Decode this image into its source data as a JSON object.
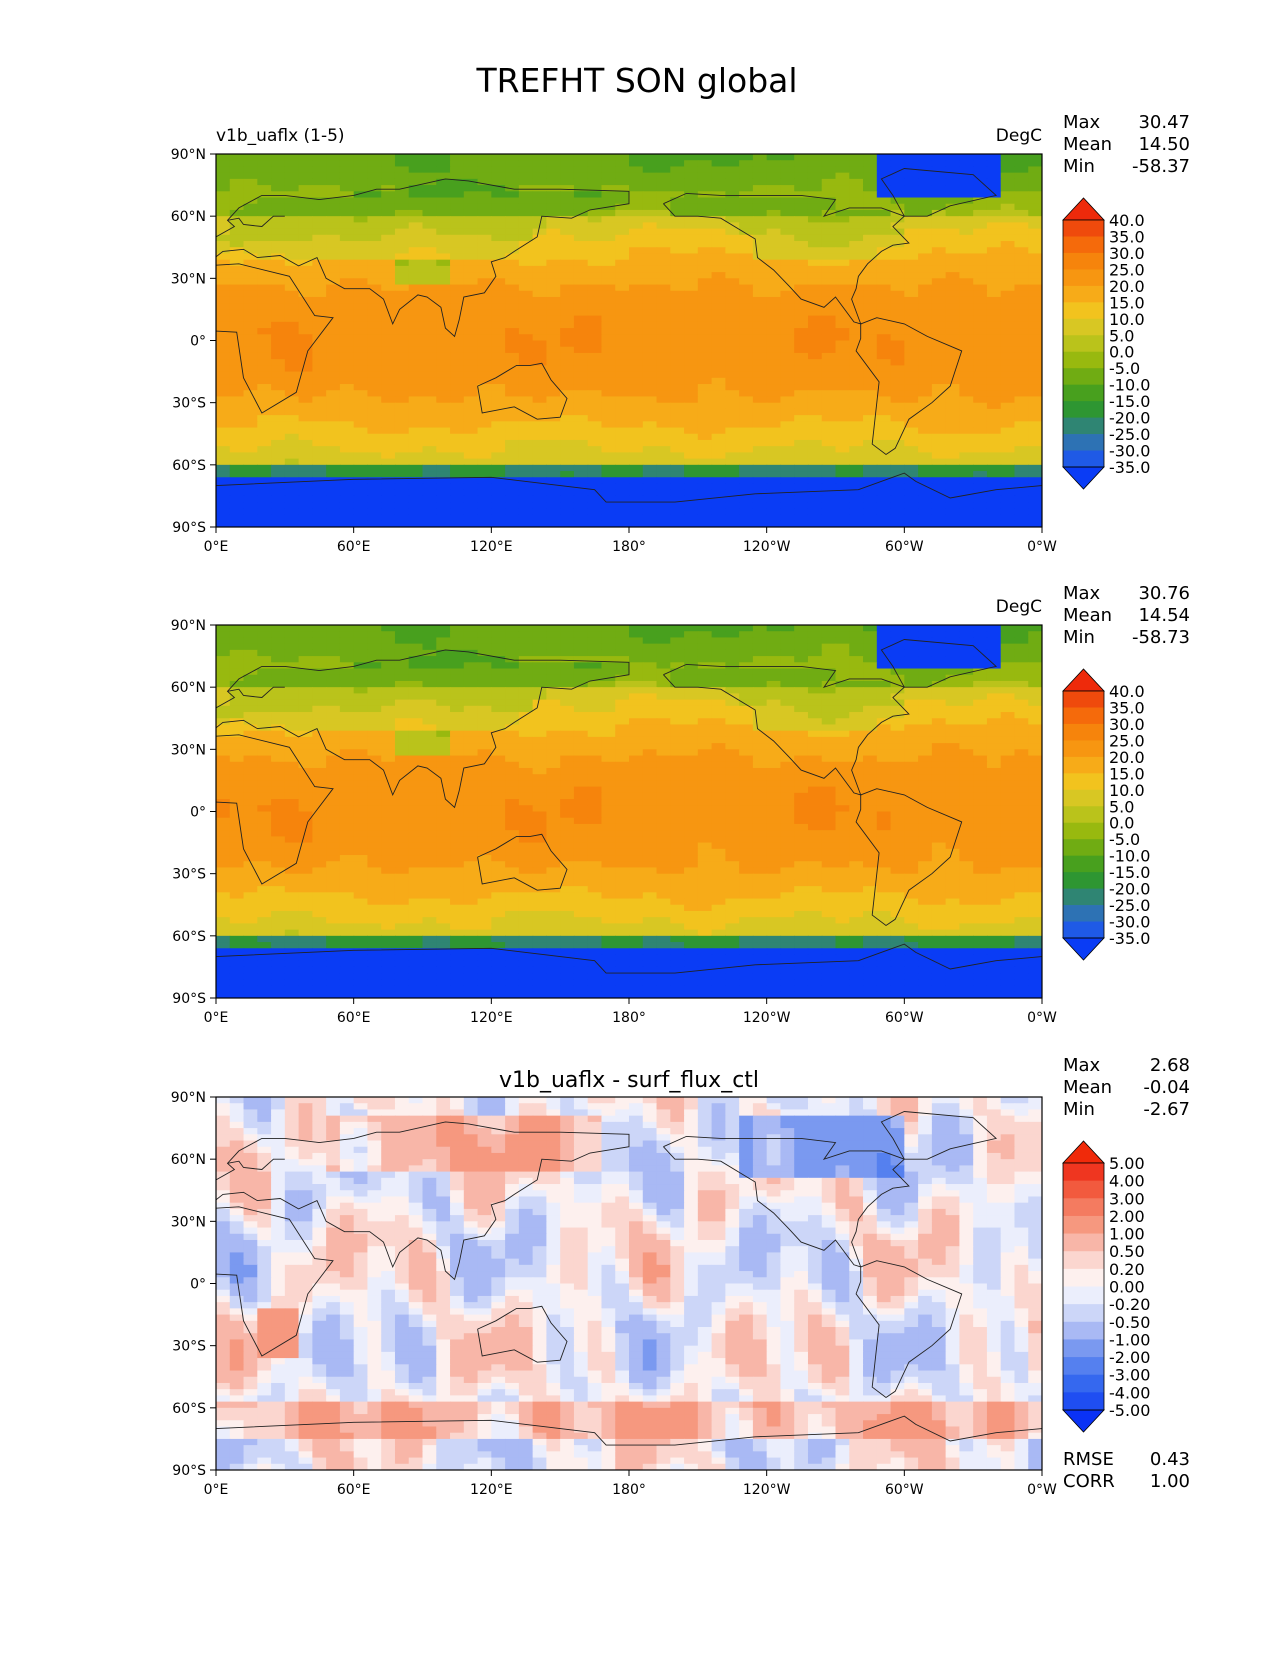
{
  "figure_title": "TREFHT SON global",
  "colors": {
    "abs_scale": [
      "#0a3cf5",
      "#1f5ae6",
      "#2d72b4",
      "#2f8573",
      "#2e9632",
      "#48a01e",
      "#70ac13",
      "#98b90f",
      "#bac31b",
      "#d8c723",
      "#f2c31e",
      "#f7ab18",
      "#f79611",
      "#f6840c",
      "#f56a0b",
      "#ef4a0c",
      "#ee2a0b"
    ],
    "diff_scale": [
      "#0a32f5",
      "#1f4ef2",
      "#3568ef",
      "#5580ef",
      "#7a99f0",
      "#a9b9f4",
      "#ccd6f8",
      "#ebeefc",
      "#fdf0ee",
      "#fbd6cf",
      "#f8b6a8",
      "#f6987f",
      "#f47b60",
      "#f25a3e",
      "#ef3620",
      "#f02a0a"
    ]
  },
  "chart_data": [
    {
      "type": "heatmap",
      "name": "panel-test",
      "left_title": "v1b_uaflx (1-5)",
      "center_title": "",
      "units": "DegC",
      "stats": [
        {
          "label": "Max",
          "value": "30.47"
        },
        {
          "label": "Mean",
          "value": "14.50"
        },
        {
          "label": "Min",
          "value": "-58.37"
        }
      ],
      "x_ticks": [
        "0°E",
        "60°E",
        "120°E",
        "180°",
        "120°W",
        "60°W",
        "0°W"
      ],
      "y_ticks": [
        "90°N",
        "60°N",
        "30°N",
        "0°",
        "30°S",
        "60°S",
        "90°S"
      ],
      "colorbar_levels": [
        "40.0",
        "35.0",
        "30.0",
        "25.0",
        "20.0",
        "15.0",
        "10.0",
        "5.0",
        "0.0",
        "-5.0",
        "-10.0",
        "-15.0",
        "-20.0",
        "-25.0",
        "-30.0",
        "-35.0"
      ],
      "scale": "abs"
    },
    {
      "type": "heatmap",
      "name": "panel-reference",
      "left_title": "",
      "center_title": "",
      "units": "DegC",
      "stats": [
        {
          "label": "Max",
          "value": "30.76"
        },
        {
          "label": "Mean",
          "value": "14.54"
        },
        {
          "label": "Min",
          "value": "-58.73"
        }
      ],
      "x_ticks": [
        "0°E",
        "60°E",
        "120°E",
        "180°",
        "120°W",
        "60°W",
        "0°W"
      ],
      "y_ticks": [
        "90°N",
        "60°N",
        "30°N",
        "0°",
        "30°S",
        "60°S",
        "90°S"
      ],
      "colorbar_levels": [
        "40.0",
        "35.0",
        "30.0",
        "25.0",
        "20.0",
        "15.0",
        "10.0",
        "5.0",
        "0.0",
        "-5.0",
        "-10.0",
        "-15.0",
        "-20.0",
        "-25.0",
        "-30.0",
        "-35.0"
      ],
      "scale": "abs"
    },
    {
      "type": "heatmap",
      "name": "panel-difference",
      "left_title": "",
      "center_title": "v1b_uaflx - surf_flux_ctl",
      "units": "",
      "stats": [
        {
          "label": "Max",
          "value": "2.68"
        },
        {
          "label": "Mean",
          "value": "-0.04"
        },
        {
          "label": "Min",
          "value": "-2.67"
        }
      ],
      "extra_stats": [
        {
          "label": "RMSE",
          "value": "0.43"
        },
        {
          "label": "CORR",
          "value": "1.00"
        }
      ],
      "x_ticks": [
        "0°E",
        "60°E",
        "120°E",
        "180°",
        "120°W",
        "60°W",
        "0°W"
      ],
      "y_ticks": [
        "90°N",
        "60°N",
        "30°N",
        "0°",
        "30°S",
        "60°S",
        "90°S"
      ],
      "colorbar_levels": [
        "5.00",
        "4.00",
        "3.00",
        "2.00",
        "1.00",
        "0.50",
        "0.20",
        "0.00",
        "-0.20",
        "-0.50",
        "-1.00",
        "-2.00",
        "-3.00",
        "-4.00",
        "-5.00"
      ],
      "scale": "diff"
    }
  ]
}
